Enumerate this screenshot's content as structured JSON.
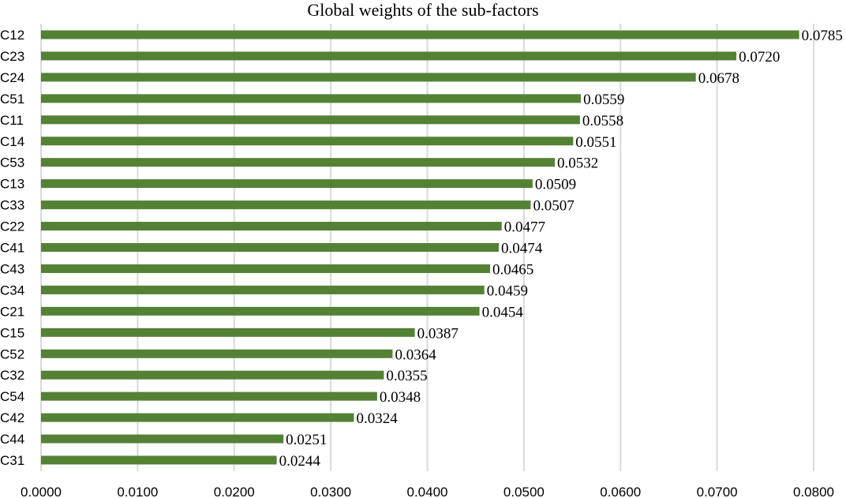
{
  "chart_data": {
    "type": "bar",
    "orientation": "horizontal",
    "title": "Global weights of the sub-factors",
    "xlabel": "",
    "ylabel": "",
    "xlim": [
      0,
      0.08
    ],
    "grid": true,
    "legend": "none",
    "bar_color": "#548235",
    "categories": [
      "C12",
      "C23",
      "C24",
      "C51",
      "C11",
      "C14",
      "C53",
      "C13",
      "C33",
      "C22",
      "C41",
      "C43",
      "C34",
      "C21",
      "C15",
      "C52",
      "C32",
      "C54",
      "C42",
      "C44",
      "C31"
    ],
    "values": [
      0.0785,
      0.072,
      0.0678,
      0.0559,
      0.0558,
      0.0551,
      0.0532,
      0.0509,
      0.0507,
      0.0477,
      0.0474,
      0.0465,
      0.0459,
      0.0454,
      0.0387,
      0.0364,
      0.0355,
      0.0348,
      0.0324,
      0.0251,
      0.0244
    ],
    "data_labels": [
      "0.0785",
      "0.0720",
      "0.0678",
      "0.0559",
      "0.0558",
      "0.0551",
      "0.0532",
      "0.0509",
      "0.0507",
      "0.0477",
      "0.0474",
      "0.0465",
      "0.0459",
      "0.0454",
      "0.0387",
      "0.0364",
      "0.0355",
      "0.0348",
      "0.0324",
      "0.0251",
      "0.0244"
    ],
    "x_ticks": [
      0,
      0.01,
      0.02,
      0.03,
      0.04,
      0.05,
      0.06,
      0.07,
      0.08
    ],
    "x_tick_labels": [
      "0.0000",
      "0.0100",
      "0.0200",
      "0.0300",
      "0.0400",
      "0.0500",
      "0.0600",
      "0.0700",
      "0.0800"
    ]
  }
}
